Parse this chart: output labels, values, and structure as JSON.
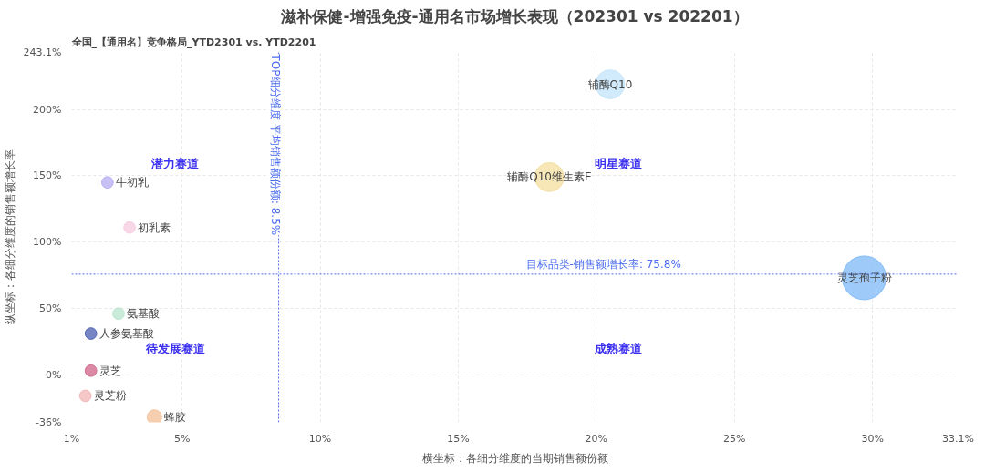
{
  "chart_data": {
    "type": "bubble",
    "title": "滋补保健-增强免疫-通用名市场增长表现（202301 vs 202201）",
    "subtitle": "全国_【通用名】竞争格局_YTD2301 vs. YTD2201",
    "xlabel": "横坐标：各细分维度的当期销售额份额",
    "ylabel": "纵坐标：各细分维度的销售额增长率",
    "xlim": [
      1,
      33.1
    ],
    "ylim": [
      -36,
      243.1
    ],
    "xticks": [
      {
        "value": 1,
        "label": "1%"
      },
      {
        "value": 5,
        "label": "5%"
      },
      {
        "value": 10,
        "label": "10%"
      },
      {
        "value": 15,
        "label": "15%"
      },
      {
        "value": 20,
        "label": "20%"
      },
      {
        "value": 25,
        "label": "25%"
      },
      {
        "value": 30,
        "label": "30%"
      },
      {
        "value": 33.1,
        "label": "33.1%"
      }
    ],
    "yticks": [
      {
        "value": -36,
        "label": "-36%"
      },
      {
        "value": 0,
        "label": "0%"
      },
      {
        "value": 50,
        "label": "50%"
      },
      {
        "value": 100,
        "label": "100%"
      },
      {
        "value": 150,
        "label": "150%"
      },
      {
        "value": 200,
        "label": "200%"
      },
      {
        "value": 243.1,
        "label": "243.1%"
      }
    ],
    "grid": true,
    "series": [
      {
        "name": "辅酶Q10",
        "color": "#c6e6fb",
        "x": [
          20.5
        ],
        "values": [
          219
        ],
        "sizes": [
          0.44
        ]
      },
      {
        "name": "辅酶Q10维生素E",
        "color": "#f5e1a4",
        "x": [
          18.3
        ],
        "values": [
          149
        ],
        "sizes": [
          0.44
        ]
      },
      {
        "name": "灵芝孢子粉",
        "color": "#84bdf7",
        "x": [
          29.7
        ],
        "values": [
          73
        ],
        "sizes": [
          1
        ]
      },
      {
        "name": "牛初乳",
        "color": "#b9b0f2",
        "x": [
          2.3
        ],
        "values": [
          145
        ],
        "sizes": [
          0.07
        ]
      },
      {
        "name": "初乳素",
        "color": "#f6cde0",
        "x": [
          3.1
        ],
        "values": [
          111
        ],
        "sizes": [
          0.07
        ]
      },
      {
        "name": "氨基酸",
        "color": "#bde6cf",
        "x": [
          2.7
        ],
        "values": [
          46
        ],
        "sizes": [
          0.07
        ]
      },
      {
        "name": "人参氨基酸",
        "color": "#5567b5",
        "x": [
          1.7
        ],
        "values": [
          31
        ],
        "sizes": [
          0.07
        ]
      },
      {
        "name": "灵芝",
        "color": "#d26b8f",
        "x": [
          1.7
        ],
        "values": [
          3
        ],
        "sizes": [
          0.07
        ]
      },
      {
        "name": "灵芝粉",
        "color": "#f2b9b9",
        "x": [
          1.5
        ],
        "values": [
          -16
        ],
        "sizes": [
          0.07
        ]
      },
      {
        "name": "蜂胶",
        "color": "#f4c39d",
        "x": [
          4.0
        ],
        "values": [
          -32
        ],
        "sizes": [
          0.11
        ]
      }
    ],
    "ref_lines": [
      {
        "axis": "x",
        "value": 8.5,
        "label": "TOP细分维度-平均销售额份额: 8.5%",
        "color": "#4b6cf0",
        "line_style": "dotted"
      },
      {
        "axis": "y",
        "value": 75.8,
        "label": "目标品类-销售额增长率: 75.8%",
        "color": "#4b6cf0",
        "line_style": "dotted"
      }
    ],
    "annotations": [
      "潜力赛道",
      "明星赛道",
      "待发展赛道",
      "成熟赛道"
    ]
  }
}
